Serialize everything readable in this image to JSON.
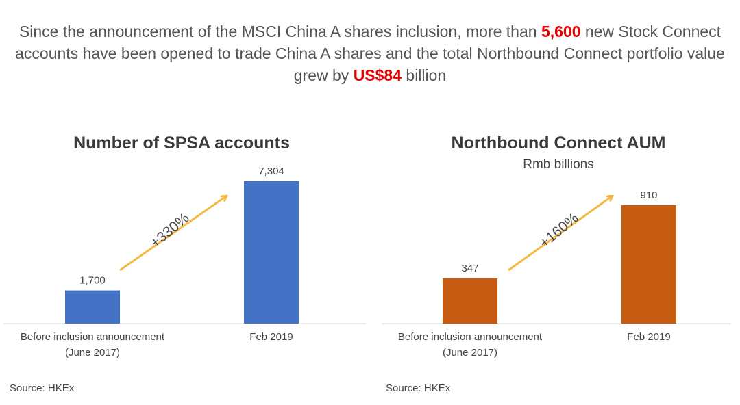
{
  "headline": {
    "part1": "Since the announcement of the MSCI China A shares inclusion, more than ",
    "highlight1": "5,600",
    "part2": " new Stock Connect  accounts have been opened to trade China A shares and the total Northbound Connect portfolio value grew by ",
    "highlight2": "US$84",
    "part3": " billion"
  },
  "colors": {
    "highlight": "#e60000",
    "blue_bar": "#4472c4",
    "orange_bar": "#c55a11",
    "arrow": "#f4b942",
    "axis": "#d9d9d9"
  },
  "chart_data": [
    {
      "type": "bar",
      "title": "Number of SPSA accounts",
      "subtitle": "",
      "categories": [
        "Before inclusion announcement\n(June 2017)",
        "Feb 2019"
      ],
      "category_lines": [
        [
          "Before inclusion announcement",
          "(June 2017)"
        ],
        [
          "Feb 2019"
        ]
      ],
      "values": [
        1700,
        7304
      ],
      "data_labels": [
        "1,700",
        "7,304"
      ],
      "growth_label": "+330%",
      "bar_color": "#4472c4",
      "ylim": [
        0,
        7304
      ],
      "grid": false,
      "source": "Source: HKEx"
    },
    {
      "type": "bar",
      "title": "Northbound Connect AUM",
      "subtitle": "Rmb billions",
      "categories": [
        "Before inclusion announcement\n(June 2017)",
        "Feb 2019"
      ],
      "category_lines": [
        [
          "Before inclusion announcement",
          "(June 2017)"
        ],
        [
          "Feb 2019"
        ]
      ],
      "values": [
        347,
        910
      ],
      "data_labels": [
        "347",
        "910"
      ],
      "growth_label": "+160%",
      "bar_color": "#c55a11",
      "ylim": [
        0,
        910
      ],
      "grid": false,
      "source": "Source: HKEx"
    }
  ]
}
